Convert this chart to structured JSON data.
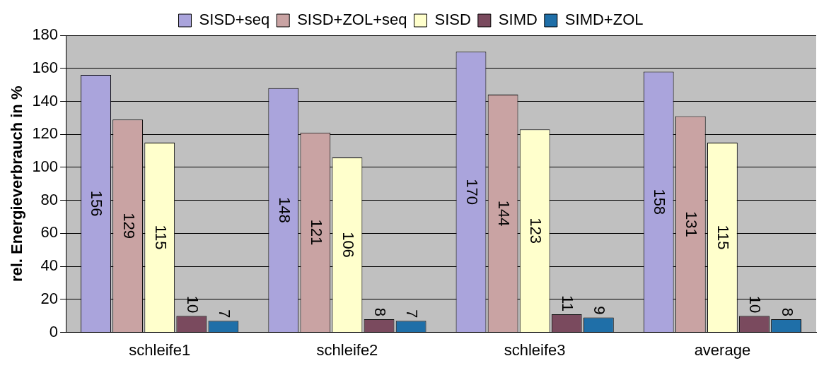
{
  "chart_data": {
    "type": "bar",
    "ylabel": "rel. Energieverbrauch in %",
    "categories": [
      "schleife1",
      "schleife2",
      "schleife3",
      "average"
    ],
    "series": [
      {
        "name": "SISD+seq",
        "color": "#aaa4dc",
        "values": [
          156,
          148,
          170,
          158
        ]
      },
      {
        "name": "SISD+ZOL+seq",
        "color": "#c9a3a3",
        "values": [
          129,
          121,
          144,
          131
        ]
      },
      {
        "name": "SISD",
        "color": "#ffffcc",
        "values": [
          115,
          106,
          123,
          115
        ]
      },
      {
        "name": "SIMD",
        "color": "#7a4a5e",
        "values": [
          10,
          8,
          11,
          10
        ]
      },
      {
        "name": "SIMD+ZOL",
        "color": "#1f6fa8",
        "values": [
          7,
          7,
          9,
          8
        ]
      }
    ],
    "ylim": [
      0,
      180
    ],
    "yticks": [
      0,
      20,
      40,
      60,
      80,
      100,
      120,
      140,
      160,
      180
    ],
    "grid": "y",
    "legend": "top",
    "data_labels": true
  }
}
